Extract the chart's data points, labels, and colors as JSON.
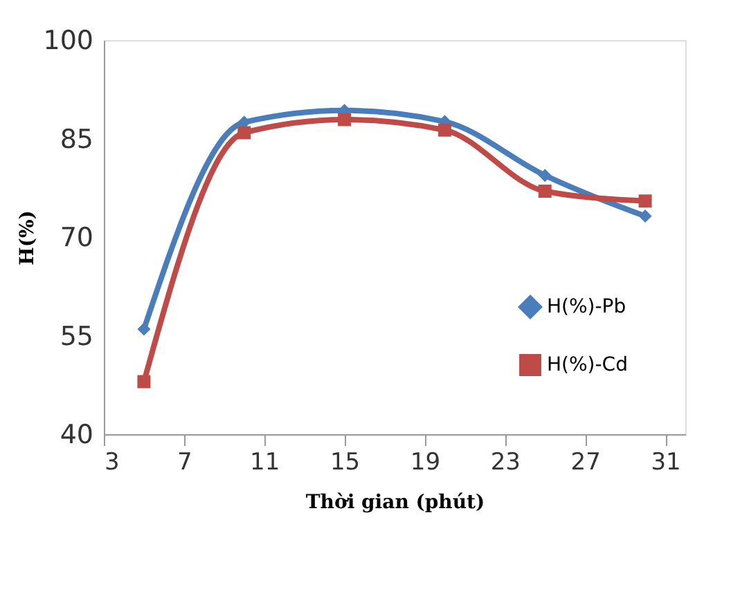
{
  "chart_data": {
    "type": "line",
    "xlabel": "Thời gian (phút)",
    "ylabel": "H(%)",
    "x": [
      5,
      10,
      15,
      20,
      25,
      30
    ],
    "series": [
      {
        "name": "H(%)-Pb",
        "color": "#4a7ebb",
        "values": [
          56,
          87.5,
          89.3,
          87.6,
          79.4,
          73.2
        ],
        "marker": "diamond"
      },
      {
        "name": "H(%)-Cd",
        "color": "#be4b48",
        "values": [
          48,
          85.9,
          87.9,
          86.3,
          77,
          75.5
        ],
        "marker": "square"
      }
    ],
    "xlim": [
      3,
      32
    ],
    "xticks": [
      3,
      7,
      11,
      15,
      19,
      23,
      27,
      31
    ],
    "ylim": [
      40,
      100
    ],
    "yticks": [
      40,
      55,
      70,
      85,
      100
    ],
    "grid": false,
    "legend": "right",
    "line_style": "solid"
  }
}
